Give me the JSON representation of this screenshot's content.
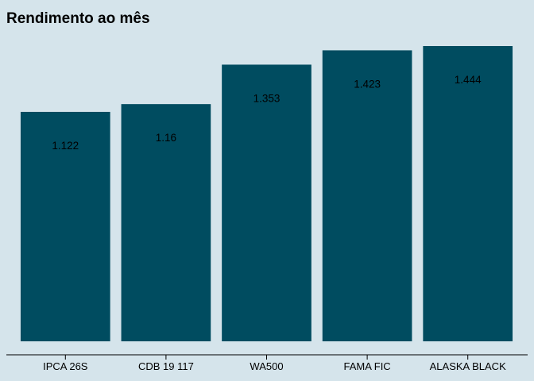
{
  "chart_data": {
    "type": "bar",
    "title": "Rendimento ao mês",
    "categories": [
      "IPCA 26S",
      "CDB 19 117",
      "WA500",
      "FAMA FIC",
      "ALASKA BLACK"
    ],
    "values": [
      1.122,
      1.16,
      1.353,
      1.423,
      1.444
    ],
    "value_labels": [
      "1.122",
      "1.16",
      "1.353",
      "1.423",
      "1.444"
    ],
    "ylim": [
      0,
      1.5
    ],
    "grid": false,
    "legend": "none",
    "xlabel": "",
    "ylabel": ""
  },
  "colors": {
    "background": "#d5e4eb",
    "bar": "#004c60",
    "axis": "#000000"
  }
}
